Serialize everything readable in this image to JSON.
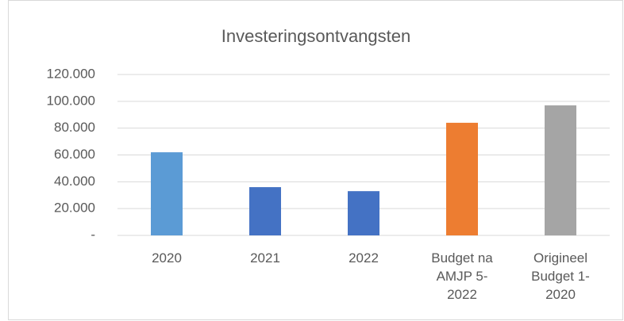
{
  "chart_data": {
    "type": "bar",
    "title": "Investeringsontvangsten",
    "categories": [
      "2020",
      "2021",
      "2022",
      "Budget na\nAMJP 5-\n2022",
      "Origineel\nBudget 1-\n2020"
    ],
    "values": [
      62000,
      36000,
      33000,
      84000,
      97000
    ],
    "colors": [
      "#5b9bd5",
      "#4472c4",
      "#4472c4",
      "#ed7d31",
      "#a5a5a5"
    ],
    "ylim": [
      0,
      120000
    ],
    "yticks": [
      {
        "value": 0,
        "label": "-"
      },
      {
        "value": 20000,
        "label": "20.000"
      },
      {
        "value": 40000,
        "label": "40.000"
      },
      {
        "value": 60000,
        "label": "60.000"
      },
      {
        "value": 80000,
        "label": "80.000"
      },
      {
        "value": 100000,
        "label": "100.000"
      },
      {
        "value": 120000,
        "label": "120.000"
      }
    ],
    "grid": true
  }
}
